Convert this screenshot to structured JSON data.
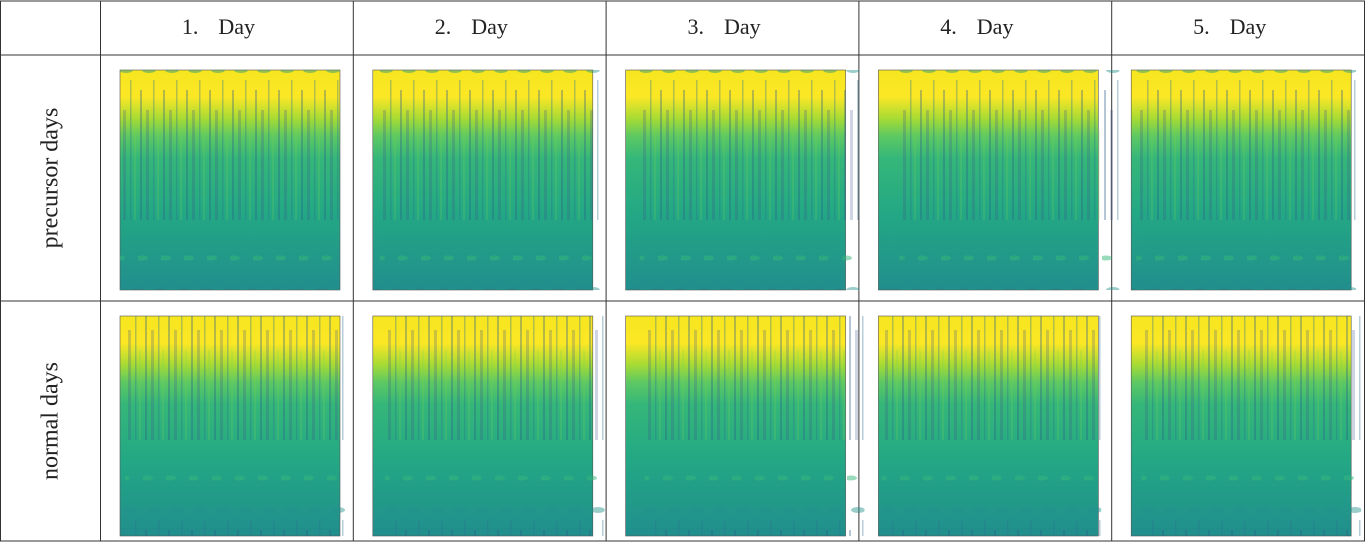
{
  "table": {
    "columns": [
      {
        "number": "1.",
        "label": "Day"
      },
      {
        "number": "2.",
        "label": "Day"
      },
      {
        "number": "3.",
        "label": "Day"
      },
      {
        "number": "4.",
        "label": "Day"
      },
      {
        "number": "5.",
        "label": "Day"
      }
    ],
    "rows": [
      "precursor days",
      "normal days"
    ]
  }
}
